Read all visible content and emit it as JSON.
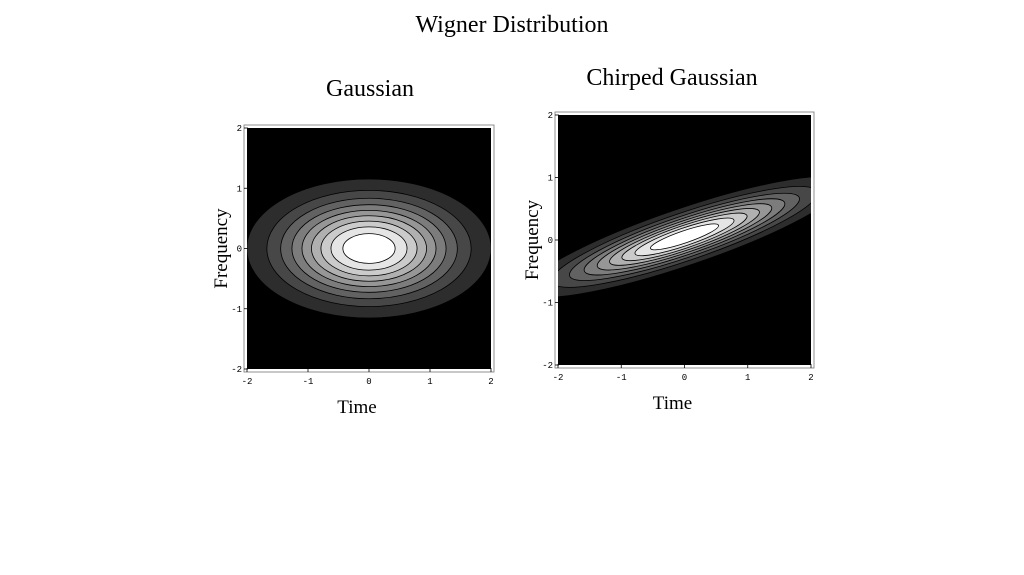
{
  "title": "Wigner Distribution",
  "chart_data": [
    {
      "type": "contour",
      "title": "Gaussian",
      "x_label": "Time",
      "y_label": "Frequency",
      "xlim": [
        -2,
        2
      ],
      "ylim": [
        -2,
        2
      ],
      "xticks": [
        -2,
        -1,
        0,
        1,
        2
      ],
      "yticks": [
        -2,
        -1,
        0,
        1,
        2
      ],
      "levels": [
        0.1,
        0.2,
        0.3,
        0.4,
        0.5,
        0.6,
        0.7,
        0.8,
        0.9
      ]
    },
    {
      "type": "contour",
      "title": "Chirped Gaussian",
      "x_label": "Time",
      "y_label": "Frequency",
      "xlim": [
        -2,
        2
      ],
      "ylim": [
        -2,
        2
      ],
      "xticks": [
        -2,
        -1,
        0,
        1,
        2
      ],
      "yticks": [
        -2,
        -1,
        0,
        1,
        2
      ],
      "levels": [
        0.1,
        0.2,
        0.3,
        0.4,
        0.5,
        0.6,
        0.7,
        0.8,
        0.9
      ]
    }
  ]
}
